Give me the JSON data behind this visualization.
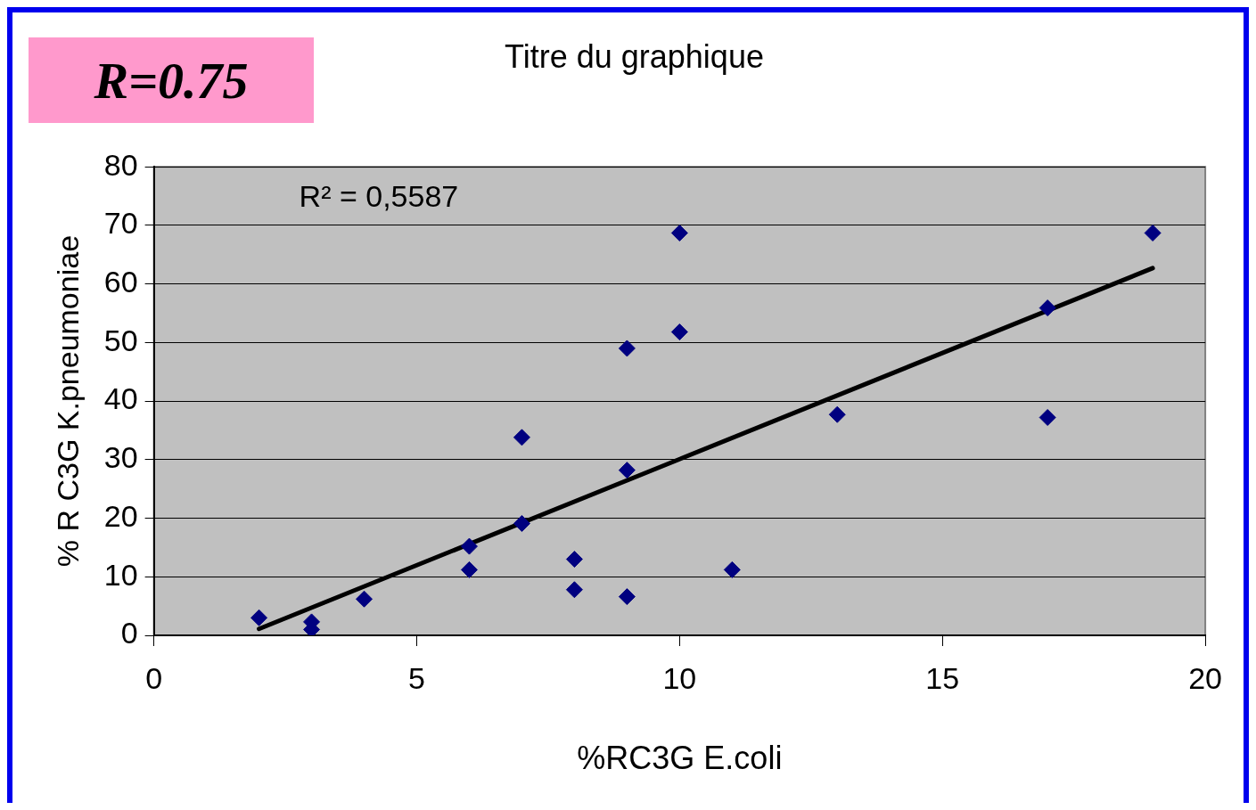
{
  "chart_data": {
    "type": "scatter",
    "title": "Titre du graphique",
    "xlabel": "%RC3G E.coli",
    "ylabel": "% R C3G K.pneumoniae",
    "annotations": [
      "R=0.75",
      "R² = 0,5587"
    ],
    "series": [
      {
        "color": "#000080",
        "marker": "diamond",
        "x": [
          2,
          3,
          3,
          4,
          6,
          6,
          7,
          7,
          8,
          8,
          9,
          9,
          9,
          10,
          10,
          11,
          13,
          17,
          17,
          19
        ],
        "values": [
          3,
          2.3,
          1,
          6.2,
          15.2,
          11.2,
          33.8,
          19.1,
          13,
          7.8,
          49,
          28.2,
          6.6,
          68.7,
          51.8,
          11.2,
          37.7,
          55.9,
          37.2,
          68.7
        ]
      },
      {
        "type": "line",
        "marker": "none",
        "color": "#000000",
        "x": [
          2,
          19
        ],
        "values": [
          1.1,
          62.7
        ]
      }
    ],
    "xlim": [
      0,
      20
    ],
    "xticks": [
      0,
      5,
      10,
      15,
      20
    ],
    "ylim": [
      0,
      80
    ],
    "yticks": [
      0,
      10,
      20,
      30,
      40,
      50,
      60,
      70,
      80
    ],
    "grid": "y",
    "legend": false
  }
}
